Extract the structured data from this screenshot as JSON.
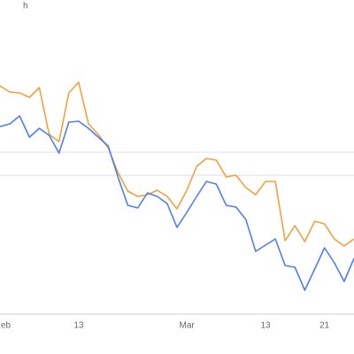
{
  "chart_data": {
    "type": "line",
    "title": "h",
    "categories": [
      "eb",
      null,
      null,
      null,
      null,
      null,
      null,
      null,
      "13",
      null,
      null,
      null,
      null,
      null,
      null,
      null,
      null,
      null,
      null,
      "Mar",
      null,
      null,
      null,
      null,
      null,
      null,
      null,
      "13",
      null,
      null,
      null,
      null,
      null,
      "21",
      null,
      null,
      null
    ],
    "series": [
      {
        "color": "#f2a03d",
        "values": [
          258,
          251,
          250,
          245,
          256,
          203,
          195,
          250,
          262,
          215,
          203,
          188,
          160,
          139,
          133,
          135,
          140,
          133,
          119,
          140,
          167,
          176,
          174,
          155,
          157,
          143,
          135,
          150,
          150,
          83,
          100,
          82,
          105,
          102,
          85,
          77,
          85
        ]
      },
      {
        "color": "#4f7ef0",
        "values": [
          212,
          215,
          224,
          200,
          210,
          202,
          182,
          217,
          218,
          210,
          200,
          190,
          155,
          123,
          120,
          137,
          133,
          125,
          98,
          115,
          133,
          150,
          147,
          123,
          121,
          107,
          71,
          78,
          85,
          55,
          53,
          27,
          51,
          75,
          58,
          37,
          63
        ]
      }
    ],
    "ylim": [
      0,
      355
    ],
    "grid_lines": [
      157,
      183
    ]
  }
}
